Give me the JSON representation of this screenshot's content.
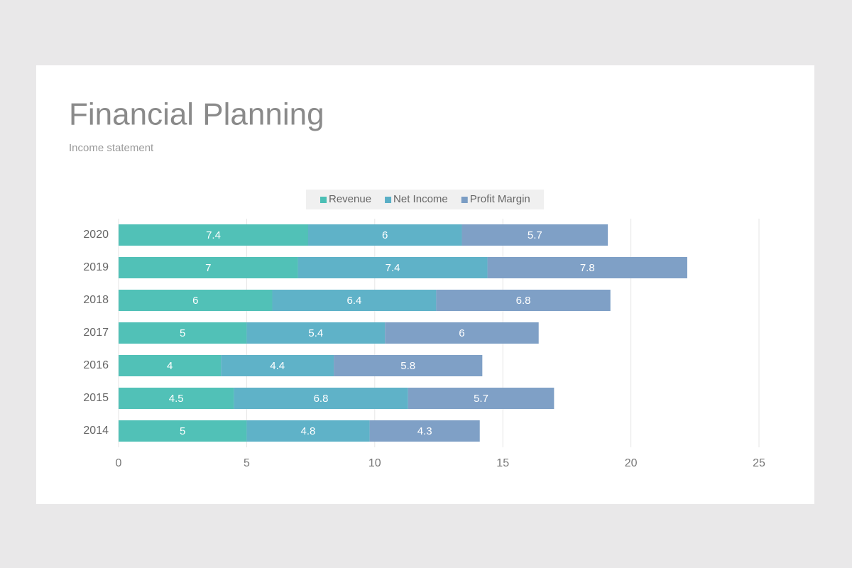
{
  "chart_data": {
    "type": "stacked-bar-horizontal",
    "title": "Financial Planning",
    "subtitle": "Income statement",
    "categories": [
      "2020",
      "2019",
      "2018",
      "2017",
      "2016",
      "2015",
      "2014"
    ],
    "series": [
      {
        "name": "Revenue",
        "color": "#4bbfb5",
        "values": [
          7.4,
          7,
          6,
          5,
          4,
          4.5,
          5
        ]
      },
      {
        "name": "Net Income",
        "color": "#5aafc6",
        "values": [
          6,
          7.4,
          6.4,
          5.4,
          4.4,
          6.8,
          4.8
        ]
      },
      {
        "name": "Profit Margin",
        "color": "#7b9dc4",
        "values": [
          5.7,
          7.8,
          6.8,
          6,
          5.8,
          5.7,
          4.3
        ]
      }
    ],
    "xlim": [
      0,
      25
    ],
    "xticks": [
      0,
      5,
      10,
      15,
      20,
      25
    ],
    "grid": true,
    "legend": "top"
  }
}
